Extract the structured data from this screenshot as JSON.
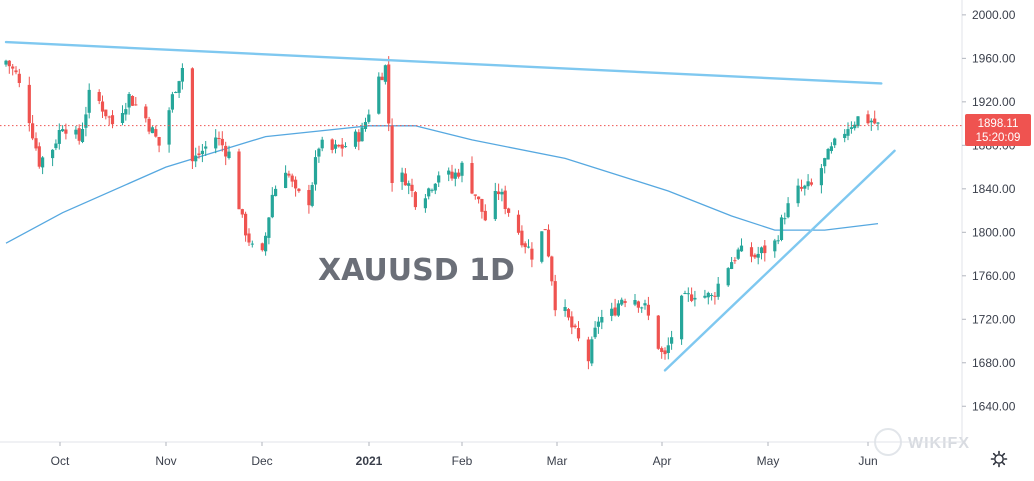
{
  "chart_data": {
    "type": "candlestick",
    "symbol_label": "XAUUSD 1D",
    "last_price": "1898.11",
    "countdown": "15:20:09",
    "y_axis": {
      "range": [
        1620,
        2010
      ],
      "ticks": [
        "2000.00",
        "1960.00",
        "1920.00",
        "1880.00",
        "1840.00",
        "1800.00",
        "1760.00",
        "1720.00",
        "1680.00",
        "1640.00"
      ]
    },
    "x_axis": {
      "ticks": [
        {
          "label": "Oct",
          "bold": false
        },
        {
          "label": "Nov",
          "bold": false
        },
        {
          "label": "Dec",
          "bold": false
        },
        {
          "label": "2021",
          "bold": true
        },
        {
          "label": "Feb",
          "bold": false
        },
        {
          "label": "Mar",
          "bold": false
        },
        {
          "label": "Apr",
          "bold": false
        },
        {
          "label": "May",
          "bold": false
        },
        {
          "label": "Jun",
          "bold": false
        }
      ]
    },
    "price_path": [
      [
        "2020-09-14",
        1958
      ],
      [
        "2020-09-17",
        1945
      ],
      [
        "2020-09-21",
        1905
      ],
      [
        "2020-09-24",
        1865
      ],
      [
        "2020-09-28",
        1878
      ],
      [
        "2020-10-01",
        1900
      ],
      [
        "2020-10-06",
        1885
      ],
      [
        "2020-10-09",
        1925
      ],
      [
        "2020-10-12",
        1920
      ],
      [
        "2020-10-16",
        1900
      ],
      [
        "2020-10-21",
        1925
      ],
      [
        "2020-10-26",
        1905
      ],
      [
        "2020-10-30",
        1880
      ],
      [
        "2020-11-04",
        1935
      ],
      [
        "2020-11-06",
        1952
      ],
      [
        "2020-11-09",
        1865
      ],
      [
        "2020-11-12",
        1875
      ],
      [
        "2020-11-16",
        1888
      ],
      [
        "2020-11-20",
        1872
      ],
      [
        "2020-11-24",
        1810
      ],
      [
        "2020-11-27",
        1785
      ],
      [
        "2020-11-30",
        1778
      ],
      [
        "2020-12-03",
        1835
      ],
      [
        "2020-12-07",
        1860
      ],
      [
        "2020-12-10",
        1835
      ],
      [
        "2020-12-14",
        1830
      ],
      [
        "2020-12-17",
        1880
      ],
      [
        "2020-12-21",
        1875
      ],
      [
        "2020-12-25",
        1880
      ],
      [
        "2020-12-30",
        1892
      ],
      [
        "2021-01-04",
        1942
      ],
      [
        "2021-01-06",
        1952
      ],
      [
        "2021-01-08",
        1850
      ],
      [
        "2021-01-12",
        1850
      ],
      [
        "2021-01-15",
        1830
      ],
      [
        "2021-01-19",
        1840
      ],
      [
        "2021-01-22",
        1855
      ],
      [
        "2021-01-26",
        1850
      ],
      [
        "2021-01-29",
        1860
      ],
      [
        "2021-02-02",
        1835
      ],
      [
        "2021-02-05",
        1812
      ],
      [
        "2021-02-09",
        1838
      ],
      [
        "2021-02-12",
        1820
      ],
      [
        "2021-02-16",
        1795
      ],
      [
        "2021-02-19",
        1780
      ],
      [
        "2021-02-23",
        1805
      ],
      [
        "2021-02-26",
        1735
      ],
      [
        "2021-03-01",
        1725
      ],
      [
        "2021-03-05",
        1700
      ],
      [
        "2021-03-08",
        1683
      ],
      [
        "2021-03-11",
        1720
      ],
      [
        "2021-03-15",
        1725
      ],
      [
        "2021-03-18",
        1740
      ],
      [
        "2021-03-22",
        1740
      ],
      [
        "2021-03-25",
        1730
      ],
      [
        "2021-03-30",
        1688
      ],
      [
        "2021-03-31",
        1685
      ],
      [
        "2021-04-05",
        1735
      ],
      [
        "2021-04-09",
        1745
      ],
      [
        "2021-04-14",
        1740
      ],
      [
        "2021-04-19",
        1770
      ],
      [
        "2021-04-22",
        1782
      ],
      [
        "2021-04-27",
        1778
      ],
      [
        "2021-05-03",
        1790
      ],
      [
        "2021-05-06",
        1818
      ],
      [
        "2021-05-10",
        1838
      ],
      [
        "2021-05-14",
        1842
      ],
      [
        "2021-05-18",
        1865
      ],
      [
        "2021-05-21",
        1880
      ],
      [
        "2021-05-25",
        1898
      ],
      [
        "2021-05-28",
        1905
      ],
      [
        "2021-06-01",
        1903
      ],
      [
        "2021-06-03",
        1898
      ]
    ],
    "moving_average": [
      [
        "2020-09-14",
        1790
      ],
      [
        "2020-10-01",
        1818
      ],
      [
        "2020-11-01",
        1860
      ],
      [
        "2020-12-01",
        1888
      ],
      [
        "2021-01-01",
        1898
      ],
      [
        "2021-01-15",
        1898
      ],
      [
        "2021-02-01",
        1885
      ],
      [
        "2021-03-01",
        1868
      ],
      [
        "2021-04-01",
        1838
      ],
      [
        "2021-04-20",
        1815
      ],
      [
        "2021-05-03",
        1802
      ],
      [
        "2021-05-18",
        1802
      ],
      [
        "2021-06-03",
        1808
      ]
    ],
    "trendlines": [
      {
        "name": "resistance",
        "from": [
          "2020-09-14",
          1975
        ],
        "to": [
          "2021-06-04",
          1937
        ],
        "color": "#7fc8f0"
      },
      {
        "name": "support",
        "from": [
          "2021-03-31",
          1673
        ],
        "to": [
          "2021-06-08",
          1875
        ],
        "color": "#7fc8f0"
      }
    ],
    "colors": {
      "up": "#26a69a",
      "down": "#ef5350",
      "ma": "#56a8e0",
      "last_price_line": "#ef5350",
      "axis_text": "#3a3f4b"
    },
    "grid": false
  }
}
